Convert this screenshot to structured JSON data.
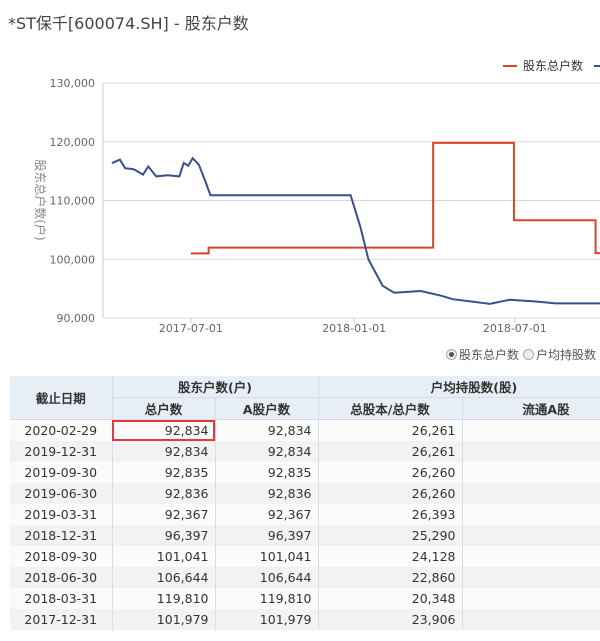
{
  "title": "*ST保千[600074.SH] - 股东户数",
  "chart_data": {
    "type": "line",
    "ylabel": "股东总户数(户)",
    "ylim": [
      90000,
      130000
    ],
    "yticks": [
      "90,000",
      "100,000",
      "110,000",
      "120,000",
      "130,000"
    ],
    "ytick_values": [
      90000,
      100000,
      110000,
      120000,
      130000
    ],
    "xlim": [
      "2017-03-24",
      "2018-10-05"
    ],
    "xticks": [
      "2017-07-01",
      "2018-01-01",
      "2018-07-01"
    ],
    "grid": true,
    "legend_position": "top-right",
    "legend": [
      "股东总户数"
    ],
    "series": [
      {
        "name": "股东总户数",
        "color": "#d9432a",
        "step": true,
        "points": [
          [
            "2017-07-01",
            101000
          ],
          [
            "2017-07-21",
            101979
          ],
          [
            "2018-03-31",
            119810
          ],
          [
            "2018-06-30",
            106644
          ],
          [
            "2018-09-30",
            101041
          ]
        ]
      },
      {
        "color": "#3a4f8f",
        "step": false,
        "points": [
          [
            "2017-04-03",
            116380
          ],
          [
            "2017-04-12",
            116950
          ],
          [
            "2017-04-18",
            115500
          ],
          [
            "2017-04-28",
            115300
          ],
          [
            "2017-05-08",
            114400
          ],
          [
            "2017-05-14",
            115800
          ],
          [
            "2017-05-23",
            114100
          ],
          [
            "2017-06-05",
            114300
          ],
          [
            "2017-06-18",
            114100
          ],
          [
            "2017-06-23",
            116400
          ],
          [
            "2017-06-28",
            115900
          ],
          [
            "2017-07-03",
            117200
          ],
          [
            "2017-07-10",
            116100
          ],
          [
            "2017-07-18",
            113000
          ],
          [
            "2017-07-23",
            110900
          ],
          [
            "2017-12-28",
            110900
          ],
          [
            "2018-01-08",
            105500
          ],
          [
            "2018-01-17",
            100000
          ],
          [
            "2018-02-02",
            95500
          ],
          [
            "2018-02-15",
            94300
          ],
          [
            "2018-03-17",
            94600
          ],
          [
            "2018-04-09",
            93800
          ],
          [
            "2018-04-22",
            93200
          ],
          [
            "2018-06-03",
            92400
          ],
          [
            "2018-06-25",
            93100
          ],
          [
            "2018-07-25",
            92800
          ],
          [
            "2018-08-16",
            92500
          ],
          [
            "2018-10-05",
            92500
          ]
        ]
      }
    ]
  },
  "radios": [
    {
      "label": "股东总户数",
      "checked": true
    },
    {
      "label": "户均持股数",
      "checked": false
    }
  ],
  "table": {
    "group_headers": [
      "截止日期",
      "股东户数(户)",
      "户均持股数(股)"
    ],
    "sub_headers": [
      "总户数",
      "A股户数",
      "总股本/总户数",
      "流通A股"
    ],
    "rows": [
      [
        "2020-02-29",
        "92,834",
        "92,834",
        "26,261"
      ],
      [
        "2019-12-31",
        "92,834",
        "92,834",
        "26,261"
      ],
      [
        "2019-09-30",
        "92,835",
        "92,835",
        "26,260"
      ],
      [
        "2019-06-30",
        "92,836",
        "92,836",
        "26,260"
      ],
      [
        "2019-03-31",
        "92,367",
        "92,367",
        "26,393"
      ],
      [
        "2018-12-31",
        "96,397",
        "96,397",
        "25,290"
      ],
      [
        "2018-09-30",
        "101,041",
        "101,041",
        "24,128"
      ],
      [
        "2018-06-30",
        "106,644",
        "106,644",
        "22,860"
      ],
      [
        "2018-03-31",
        "119,810",
        "119,810",
        "20,348"
      ],
      [
        "2017-12-31",
        "101,979",
        "101,979",
        "23,906"
      ]
    ],
    "highlight_color": "#e0393e"
  }
}
